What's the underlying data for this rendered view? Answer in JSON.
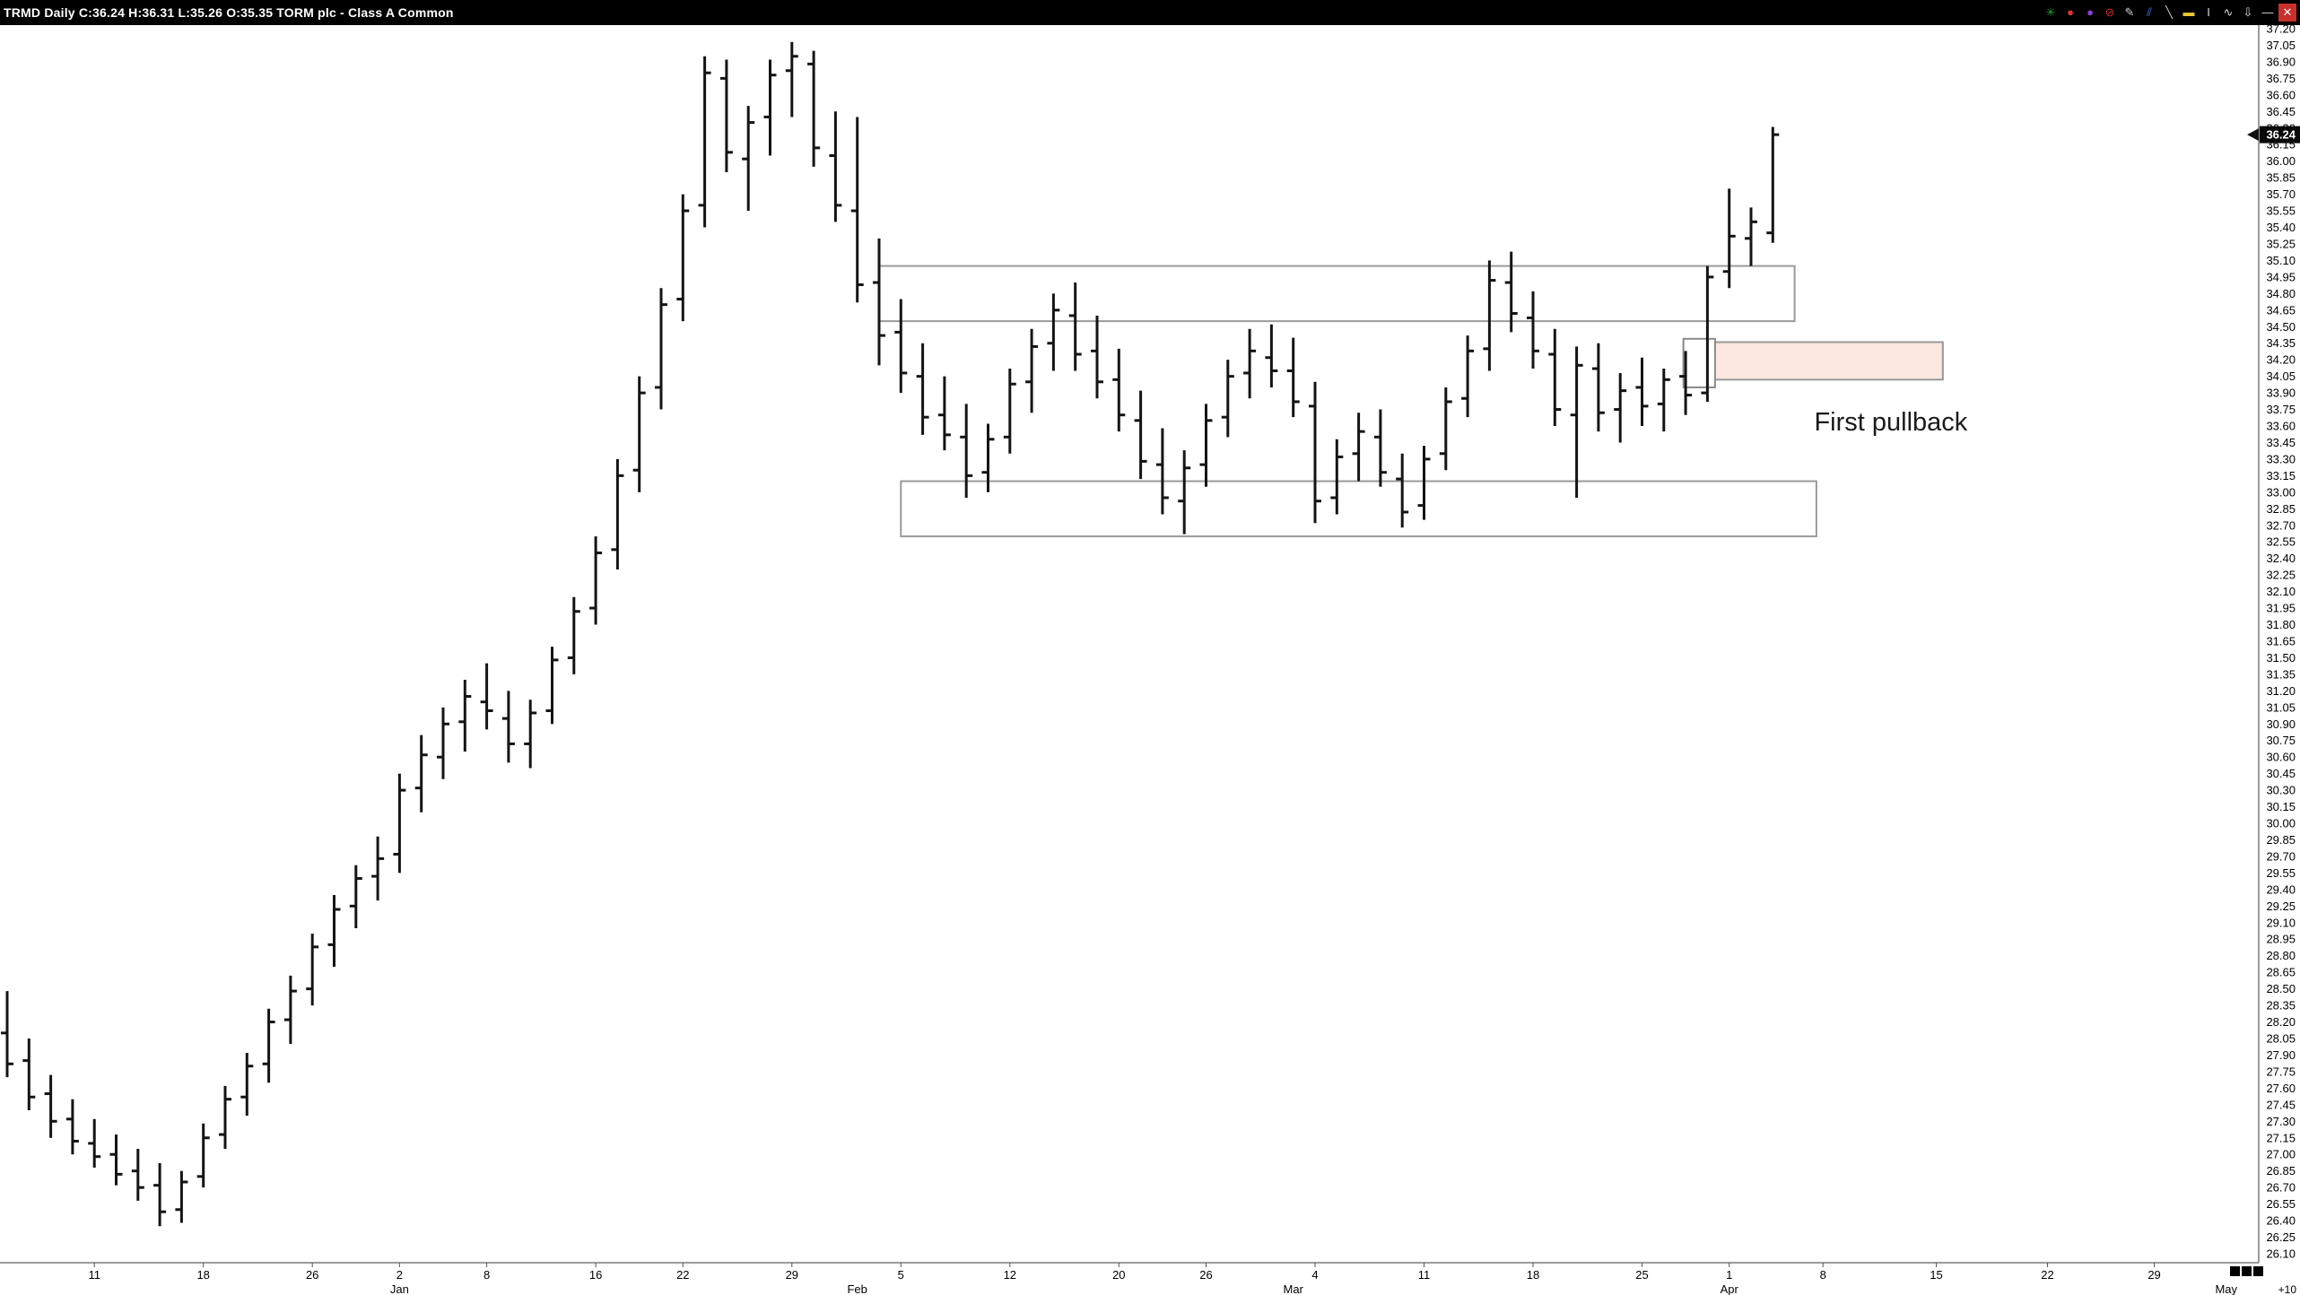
{
  "title_bar": {
    "title": "TRMD Daily C:36.24 H:36.31 L:35.26 O:35.35 TORM plc - Class A Common",
    "icons": [
      {
        "name": "green-asterisk-icon",
        "glyph": "✳",
        "color": "#27a331"
      },
      {
        "name": "red-ball-icon",
        "glyph": "●",
        "color": "#e03131"
      },
      {
        "name": "purple-ball-icon",
        "glyph": "●",
        "color": "#8b3fd9"
      },
      {
        "name": "no-entry-icon",
        "glyph": "⊘",
        "color": "#d12c2c"
      },
      {
        "name": "pencil-icon",
        "glyph": "✎",
        "color": "#cccccc"
      },
      {
        "name": "parallel-lines-icon",
        "glyph": "⫽",
        "color": "#4d79ff"
      },
      {
        "name": "trendline-icon",
        "glyph": "╲",
        "color": "#cccccc"
      },
      {
        "name": "note-icon",
        "glyph": "▬",
        "color": "#e6c832"
      },
      {
        "name": "text-tool-icon",
        "glyph": "I",
        "color": "#dddddd"
      },
      {
        "name": "zigzag-icon",
        "glyph": "∿",
        "color": "#dddddd"
      },
      {
        "name": "arrow-down-icon",
        "glyph": "⇩",
        "color": "#dddddd"
      },
      {
        "name": "minimize-icon",
        "glyph": "—",
        "color": "#dddddd"
      },
      {
        "name": "close-icon",
        "glyph": "✕",
        "color": "#ffffff",
        "bg": "#c9302c"
      }
    ]
  },
  "chart_data": {
    "type": "ohlc-bar",
    "symbol": "TRMD",
    "timeframe": "Daily",
    "last_price": 36.24,
    "last_ohlc": {
      "open": 35.35,
      "high": 36.31,
      "low": 35.26,
      "close": 36.24
    },
    "ylim": [
      26.1,
      37.2
    ],
    "grid": "off",
    "bars": [
      [
        28.1,
        28.48,
        27.7,
        27.82
      ],
      [
        27.85,
        28.05,
        27.4,
        27.52
      ],
      [
        27.55,
        27.72,
        27.15,
        27.3
      ],
      [
        27.32,
        27.5,
        27.0,
        27.12
      ],
      [
        27.1,
        27.32,
        26.88,
        26.98
      ],
      [
        27.0,
        27.18,
        26.72,
        26.82
      ],
      [
        26.85,
        27.05,
        26.58,
        26.7
      ],
      [
        26.72,
        26.92,
        26.35,
        26.48
      ],
      [
        26.5,
        26.85,
        26.38,
        26.75
      ],
      [
        26.8,
        27.28,
        26.7,
        27.15
      ],
      [
        27.18,
        27.62,
        27.05,
        27.5
      ],
      [
        27.52,
        27.92,
        27.35,
        27.8
      ],
      [
        27.82,
        28.32,
        27.65,
        28.2
      ],
      [
        28.22,
        28.62,
        28.0,
        28.48
      ],
      [
        28.5,
        29.0,
        28.35,
        28.88
      ],
      [
        28.9,
        29.35,
        28.7,
        29.22
      ],
      [
        29.25,
        29.62,
        29.05,
        29.5
      ],
      [
        29.52,
        29.88,
        29.3,
        29.68
      ],
      [
        29.72,
        30.45,
        29.55,
        30.3
      ],
      [
        30.32,
        30.8,
        30.1,
        30.62
      ],
      [
        30.6,
        31.05,
        30.4,
        30.9
      ],
      [
        30.92,
        31.3,
        30.65,
        31.15
      ],
      [
        31.1,
        31.45,
        30.85,
        31.02
      ],
      [
        30.95,
        31.2,
        30.55,
        30.72
      ],
      [
        30.72,
        31.12,
        30.5,
        31.0
      ],
      [
        31.02,
        31.6,
        30.9,
        31.48
      ],
      [
        31.5,
        32.05,
        31.35,
        31.92
      ],
      [
        31.95,
        32.6,
        31.8,
        32.45
      ],
      [
        32.48,
        33.3,
        32.3,
        33.15
      ],
      [
        33.2,
        34.05,
        33.0,
        33.9
      ],
      [
        33.95,
        34.85,
        33.75,
        34.7
      ],
      [
        34.75,
        35.7,
        34.55,
        35.55
      ],
      [
        35.6,
        36.95,
        35.4,
        36.8
      ],
      [
        36.75,
        36.92,
        35.9,
        36.08
      ],
      [
        36.02,
        36.5,
        35.55,
        36.35
      ],
      [
        36.4,
        36.92,
        36.05,
        36.78
      ],
      [
        36.82,
        37.08,
        36.4,
        36.95
      ],
      [
        36.88,
        37.0,
        35.95,
        36.12
      ],
      [
        36.05,
        36.45,
        35.45,
        35.6
      ],
      [
        35.55,
        36.4,
        34.72,
        34.88
      ],
      [
        34.9,
        35.3,
        34.15,
        34.42
      ],
      [
        34.45,
        34.75,
        33.9,
        34.08
      ],
      [
        34.05,
        34.35,
        33.52,
        33.68
      ],
      [
        33.7,
        34.05,
        33.38,
        33.52
      ],
      [
        33.5,
        33.8,
        32.95,
        33.15
      ],
      [
        33.18,
        33.62,
        33.0,
        33.48
      ],
      [
        33.5,
        34.12,
        33.35,
        33.98
      ],
      [
        34.0,
        34.48,
        33.72,
        34.32
      ],
      [
        34.35,
        34.8,
        34.1,
        34.65
      ],
      [
        34.6,
        34.9,
        34.1,
        34.25
      ],
      [
        34.28,
        34.6,
        33.85,
        34.0
      ],
      [
        34.02,
        34.3,
        33.55,
        33.7
      ],
      [
        33.65,
        33.92,
        33.12,
        33.28
      ],
      [
        33.25,
        33.58,
        32.8,
        32.95
      ],
      [
        32.92,
        33.38,
        32.62,
        33.22
      ],
      [
        33.25,
        33.8,
        33.05,
        33.65
      ],
      [
        33.68,
        34.2,
        33.5,
        34.05
      ],
      [
        34.08,
        34.48,
        33.85,
        34.28
      ],
      [
        34.22,
        34.52,
        33.95,
        34.1
      ],
      [
        34.1,
        34.4,
        33.68,
        33.82
      ],
      [
        33.78,
        34.0,
        32.72,
        32.92
      ],
      [
        32.95,
        33.48,
        32.8,
        33.32
      ],
      [
        33.35,
        33.72,
        33.1,
        33.55
      ],
      [
        33.5,
        33.75,
        33.05,
        33.18
      ],
      [
        33.12,
        33.35,
        32.68,
        32.82
      ],
      [
        32.88,
        33.42,
        32.75,
        33.3
      ],
      [
        33.35,
        33.95,
        33.2,
        33.82
      ],
      [
        33.85,
        34.42,
        33.68,
        34.28
      ],
      [
        34.3,
        35.1,
        34.1,
        34.92
      ],
      [
        34.9,
        35.18,
        34.45,
        34.62
      ],
      [
        34.58,
        34.82,
        34.12,
        34.28
      ],
      [
        34.25,
        34.48,
        33.6,
        33.75
      ],
      [
        33.7,
        34.32,
        32.95,
        34.15
      ],
      [
        34.12,
        34.35,
        33.55,
        33.72
      ],
      [
        33.75,
        34.08,
        33.45,
        33.92
      ],
      [
        33.95,
        34.22,
        33.6,
        33.78
      ],
      [
        33.8,
        34.12,
        33.55,
        34.02
      ],
      [
        34.05,
        34.28,
        33.7,
        33.88
      ],
      [
        33.9,
        35.05,
        33.82,
        34.95
      ],
      [
        35.0,
        35.75,
        34.85,
        35.32
      ],
      [
        35.3,
        35.58,
        35.05,
        35.45
      ],
      [
        35.35,
        36.31,
        35.26,
        36.24
      ]
    ],
    "price_axis": {
      "step": 0.15,
      "last_price_label": "36.24",
      "labels": [
        "37.20",
        "37.05",
        "36.90",
        "36.75",
        "36.60",
        "36.45",
        "36.30",
        "36.15",
        "36.00",
        "35.85",
        "35.70",
        "35.55",
        "35.40",
        "35.25",
        "35.10",
        "34.95",
        "34.80",
        "34.65",
        "34.50",
        "34.35",
        "34.20",
        "34.05",
        "33.90",
        "33.75",
        "33.60",
        "33.45",
        "33.30",
        "33.15",
        "33.00",
        "32.85",
        "32.70",
        "32.55",
        "32.40",
        "32.25",
        "32.10",
        "31.95",
        "31.80",
        "31.65",
        "31.50",
        "31.35",
        "31.20",
        "31.05",
        "30.90",
        "30.75",
        "30.60",
        "30.45",
        "30.30",
        "30.15",
        "30.00",
        "29.85",
        "29.70",
        "29.55",
        "29.40",
        "29.25",
        "29.10",
        "28.95",
        "28.80",
        "28.65",
        "28.50",
        "28.35",
        "28.20",
        "28.05",
        "27.90",
        "27.75",
        "27.60",
        "27.45",
        "27.30",
        "27.15",
        "27.00",
        "26.85",
        "26.70",
        "26.55",
        "26.40",
        "26.25",
        "26.10"
      ]
    },
    "date_axis": {
      "day_ticks": [
        {
          "label": "11",
          "i": 4
        },
        {
          "label": "18",
          "i": 9
        },
        {
          "label": "26",
          "i": 14
        },
        {
          "label": "2",
          "i": 18
        },
        {
          "label": "8",
          "i": 22
        },
        {
          "label": "16",
          "i": 27
        },
        {
          "label": "22",
          "i": 31
        },
        {
          "label": "29",
          "i": 36
        },
        {
          "label": "5",
          "i": 41
        },
        {
          "label": "12",
          "i": 46
        },
        {
          "label": "20",
          "i": 51
        },
        {
          "label": "26",
          "i": 55
        },
        {
          "label": "4",
          "i": 60
        },
        {
          "label": "11",
          "i": 65
        },
        {
          "label": "18",
          "i": 70
        },
        {
          "label": "25",
          "i": 75
        },
        {
          "label": "1",
          "i": 79
        },
        {
          "label": "8",
          "i": 83.3
        },
        {
          "label": "15",
          "i": 88.5
        },
        {
          "label": "22",
          "i": 93.6
        },
        {
          "label": "29",
          "i": 98.5
        }
      ],
      "month_ticks": [
        {
          "label": "Jan",
          "i": 18
        },
        {
          "label": "Feb",
          "i": 39
        },
        {
          "label": "Mar",
          "i": 59
        },
        {
          "label": "Apr",
          "i": 79
        },
        {
          "label": "May",
          "i": 101.8
        }
      ]
    },
    "zones": [
      {
        "name": "resistance-zone-box",
        "i1": 40,
        "i2": 82,
        "p1": 35.05,
        "p2": 34.55,
        "fill": "none",
        "border": "#9b9b9b"
      },
      {
        "name": "support-zone-box",
        "i1": 41,
        "i2": 83,
        "p1": 33.1,
        "p2": 32.6,
        "fill": "none",
        "border": "#9b9b9b"
      },
      {
        "name": "first-pullback-box",
        "i1": 76.9,
        "i2": 88.8,
        "p1": 34.36,
        "p2": 34.02,
        "fill": "#fbe8de",
        "border": "#999999"
      },
      {
        "name": "breakout-day-box",
        "i1": 76.9,
        "i2": 78.35,
        "p1": 34.39,
        "p2": 33.95,
        "fill": "#ffffff",
        "border": "#8a8a8a"
      }
    ],
    "annotations": [
      {
        "text": "First pullback",
        "i": 82.9,
        "price": 33.56
      }
    ],
    "bottom_right_label": "+10"
  }
}
